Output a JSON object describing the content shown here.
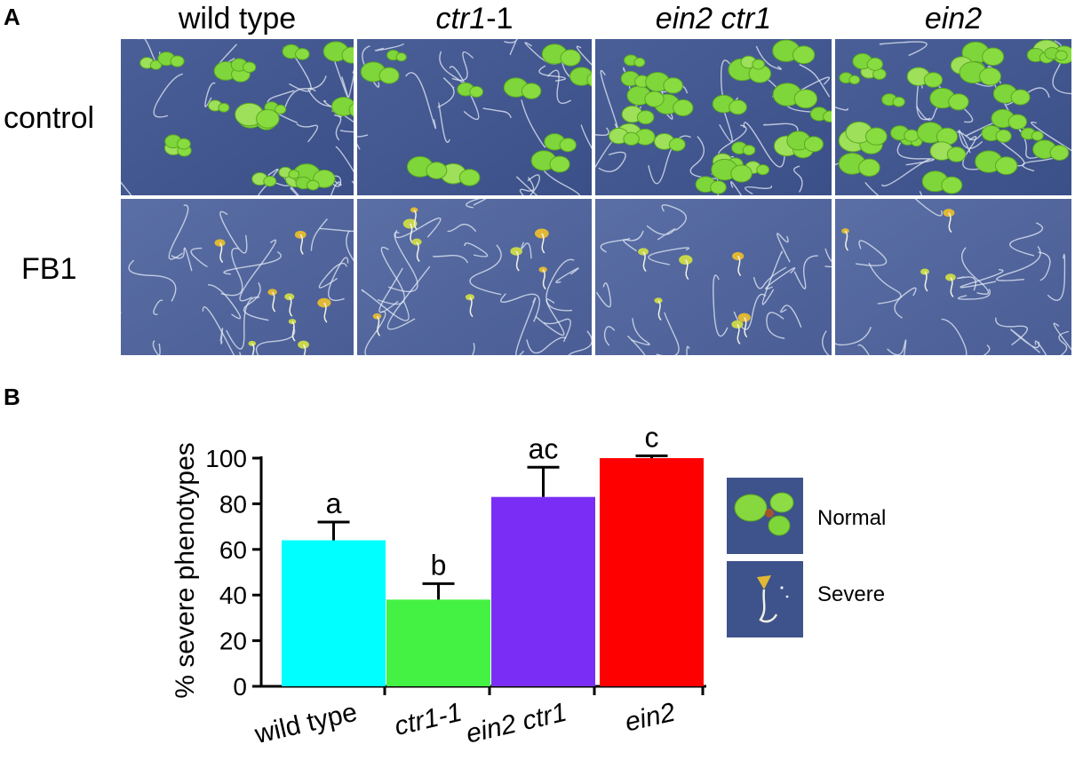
{
  "panel_a": {
    "letter": "A",
    "columns": [
      "wild type",
      "ctr1-1",
      "ein2 ctr1",
      "ein2"
    ],
    "column_parts": [
      [
        {
          "text": "wild type",
          "italic": false
        }
      ],
      [
        {
          "text": "ctr1",
          "italic": true
        },
        {
          "text": "-1",
          "italic": false
        }
      ],
      [
        {
          "text": "ein2 ctr1",
          "italic": true
        }
      ],
      [
        {
          "text": "ein2",
          "italic": true
        }
      ]
    ],
    "rows": [
      "control",
      "FB1"
    ]
  },
  "panel_b": {
    "letter": "B",
    "legend": [
      {
        "label": "Normal",
        "icon": "normal-seedling-photo"
      },
      {
        "label": "Severe",
        "icon": "severe-seedling-photo"
      }
    ]
  },
  "chart_data": {
    "type": "bar",
    "categories": [
      "wild type",
      "ctr1-1",
      "ein2 ctr1",
      "ein2"
    ],
    "category_italic": [
      false,
      true,
      true,
      true
    ],
    "values": [
      64,
      38,
      83,
      100
    ],
    "errors": [
      8,
      7,
      13,
      1
    ],
    "significance_letters": [
      "a",
      "b",
      "ac",
      "c"
    ],
    "colors": [
      "#00ffff",
      "#44f244",
      "#7a2ef5",
      "#ff0000"
    ],
    "ylabel": "% severe phenotypes",
    "xlabel": "",
    "ylim": [
      0,
      100
    ],
    "yticks": [
      0,
      20,
      40,
      60,
      80,
      100
    ]
  }
}
